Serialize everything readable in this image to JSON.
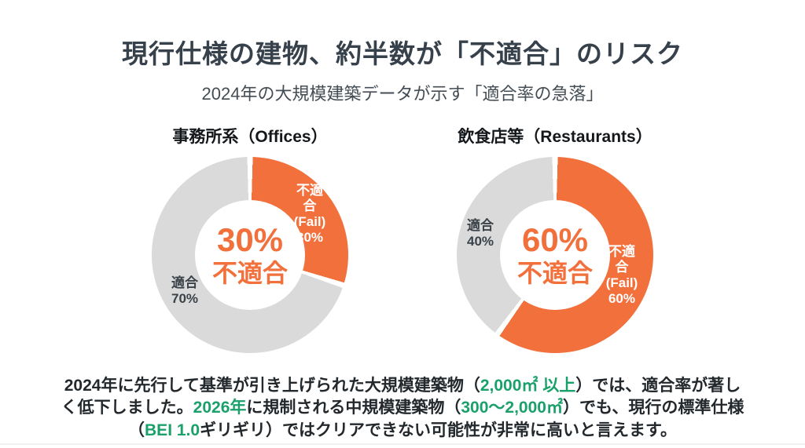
{
  "page": {
    "title": "現行仕様の建物、約半数が「不適合」のリスク",
    "subtitle": "2024年の大規模建築データが示す「適合率の急落」"
  },
  "colors": {
    "accent_orange": "#F1703C",
    "slice_gray": "#DADADA",
    "title_dark": "#37414B",
    "highlight_green": "#1AA06B",
    "fail_label_white": "#FFFFFF",
    "pass_label_dark": "#3A424A"
  },
  "chart_data": [
    {
      "type": "pie",
      "subtype": "donut",
      "title": "事務所系（Offices）",
      "start_angle_deg": 0,
      "direction": "clockwise",
      "slices": [
        {
          "label": "不適合 (Fail)",
          "value": 30,
          "color": "#F1703C"
        },
        {
          "label": "適合",
          "value": 70,
          "color": "#DADADA"
        }
      ],
      "center_value": "30%",
      "center_label": "不適合",
      "fail_slice_label": "不適合\n(Fail)\n30%",
      "pass_slice_label": "適合\n70%"
    },
    {
      "type": "pie",
      "subtype": "donut",
      "title": "飲食店等（Restaurants）",
      "start_angle_deg": 0,
      "direction": "clockwise",
      "slices": [
        {
          "label": "不適合 (Fail)",
          "value": 60,
          "color": "#F1703C"
        },
        {
          "label": "適合",
          "value": 40,
          "color": "#DADADA"
        }
      ],
      "center_value": "60%",
      "center_label": "不適合",
      "fail_slice_label": "不適合\n(Fail)\n60%",
      "pass_slice_label": "適合\n40%"
    }
  ],
  "footnote": {
    "segments": [
      {
        "text": "2024年に先行して基準が引き上げられた大規模建築物（",
        "highlight": false
      },
      {
        "text": "2,000㎡ 以上",
        "highlight": true
      },
      {
        "text": "）では、適合率が著しく低下しました。",
        "highlight": false
      },
      {
        "text": "2026年",
        "highlight": true
      },
      {
        "text": "に規制される中規模建築物（",
        "highlight": false
      },
      {
        "text": "300〜2,000㎡",
        "highlight": true
      },
      {
        "text": "）でも、現行の標準仕様（",
        "highlight": false
      },
      {
        "text": "BEI 1.0",
        "highlight": true
      },
      {
        "text": "ギリギリ）ではクリアできない可能性が非常に高いと言えます。",
        "highlight": false
      }
    ]
  }
}
